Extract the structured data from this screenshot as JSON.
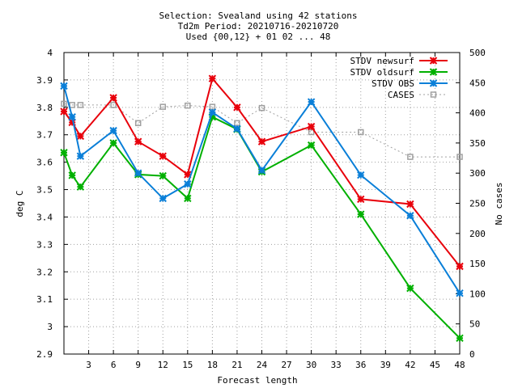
{
  "chart_data": {
    "type": "line",
    "title_lines": [
      "Selection: Svealand using    42 stations",
      "Td2m   Period: 20210716-20210720",
      "Used {00,12} + 01 02 ... 48"
    ],
    "xlabel": "Forecast length",
    "ylabel": "deg C",
    "y2label": "No cases",
    "xlim": [
      0,
      48
    ],
    "ylim": [
      2.9,
      4.0
    ],
    "y2lim": [
      0,
      500
    ],
    "x_ticks": [
      3,
      6,
      9,
      12,
      15,
      18,
      21,
      24,
      27,
      30,
      33,
      36,
      39,
      42,
      45,
      48
    ],
    "y_ticks": [
      "2.9",
      "3",
      "3.1",
      "3.2",
      "3.3",
      "3.4",
      "3.5",
      "3.6",
      "3.7",
      "3.8",
      "3.9",
      "4"
    ],
    "y2_ticks": [
      "0",
      "50",
      "100",
      "150",
      "200",
      "250",
      "300",
      "350",
      "400",
      "450",
      "500"
    ],
    "grid": true,
    "legend_position": "top-right",
    "series": [
      {
        "name": "STDV newsurf",
        "color": "#e8000b",
        "axis": "left",
        "marker": "star",
        "x": [
          0,
          1,
          2,
          6,
          9,
          12,
          15,
          18,
          21,
          24,
          30,
          36,
          42,
          48
        ],
        "values": [
          3.785,
          3.745,
          3.695,
          3.835,
          3.675,
          3.622,
          3.555,
          3.905,
          3.8,
          3.675,
          3.73,
          3.465,
          3.447,
          3.22
        ]
      },
      {
        "name": "STDV oldsurf",
        "color": "#00b000",
        "axis": "left",
        "marker": "star",
        "x": [
          0,
          1,
          2,
          6,
          9,
          12,
          15,
          18,
          21,
          24,
          30,
          36,
          42,
          48
        ],
        "values": [
          3.635,
          3.552,
          3.51,
          3.67,
          3.555,
          3.55,
          3.468,
          3.765,
          3.72,
          3.565,
          3.662,
          3.41,
          3.14,
          2.958
        ]
      },
      {
        "name": "STDV OBS",
        "color": "#0a7fd8",
        "axis": "left",
        "marker": "star",
        "x": [
          0,
          1,
          2,
          6,
          9,
          12,
          15,
          18,
          21,
          24,
          30,
          36,
          42,
          48
        ],
        "values": [
          3.878,
          3.765,
          3.622,
          3.715,
          3.56,
          3.468,
          3.52,
          3.782,
          3.722,
          3.57,
          3.82,
          3.553,
          3.405,
          3.122
        ]
      },
      {
        "name": "CASES",
        "color": "#a0a0a0",
        "axis": "right",
        "marker": "square",
        "dashed": true,
        "x": [
          0,
          1,
          2,
          6,
          9,
          12,
          15,
          18,
          21,
          24,
          30,
          36,
          42,
          48
        ],
        "values": [
          415,
          413,
          413,
          413,
          383,
          410,
          412,
          410,
          383,
          408,
          368,
          368,
          327,
          327
        ]
      }
    ]
  }
}
